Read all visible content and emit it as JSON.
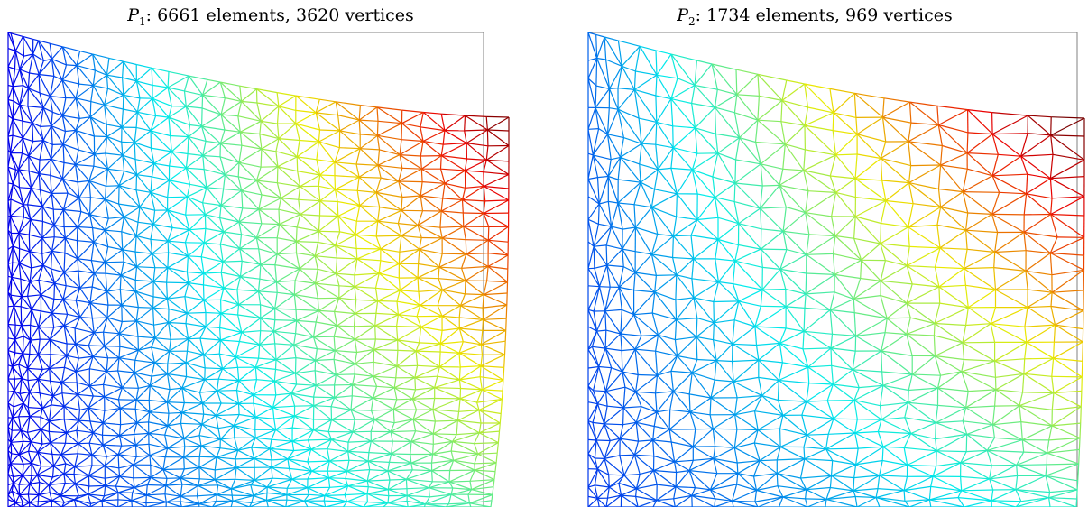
{
  "panels": [
    {
      "id": "p1",
      "title_var": "P",
      "title_sub": "1",
      "title_rest": ": 6661 elements, 3620 vertices",
      "mesh_density": "fine",
      "color_scale": "jet"
    },
    {
      "id": "p2",
      "title_var": "P",
      "title_sub": "2",
      "title_rest": ": 1734 elements, 969 vertices",
      "mesh_density": "coarse",
      "color_scale": "jet"
    }
  ],
  "colors": {
    "outline": "#808080",
    "jet_low": "#0000cc",
    "jet_high": "#ff0000"
  }
}
